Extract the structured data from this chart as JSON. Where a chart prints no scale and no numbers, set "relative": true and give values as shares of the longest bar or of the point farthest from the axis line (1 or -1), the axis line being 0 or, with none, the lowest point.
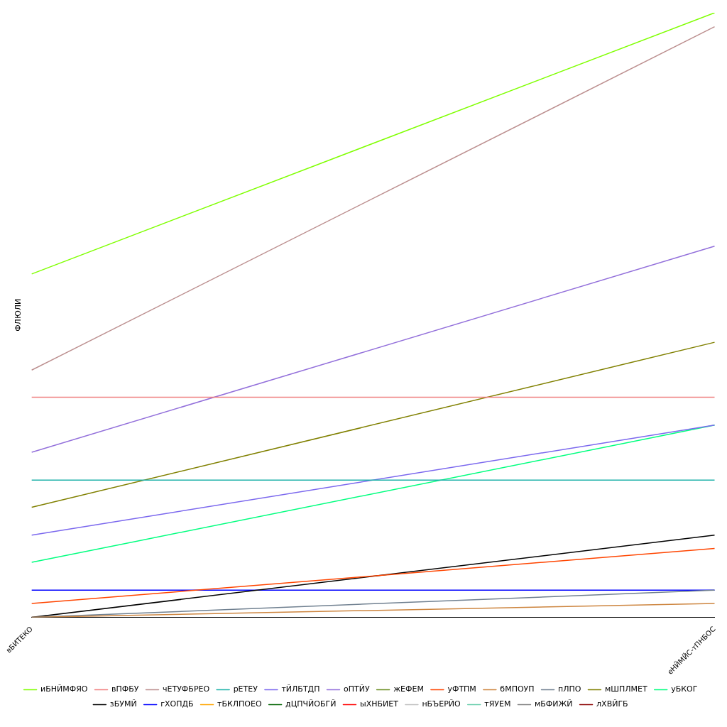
{
  "chart_data": {
    "type": "line",
    "ylabel": "ФЛЮЛИ",
    "categories": [
      "вБИТЕКО",
      "еНЙМЙС-тПНБОС"
    ],
    "relative": true,
    "legend": "bottom",
    "marker": "none",
    "line_style": "solid",
    "series": [
      {
        "name": "иБНЙМФЯО",
        "color": "#7fff00",
        "values": [
          0.568,
          1
        ]
      },
      {
        "name": "вПФБУ",
        "color": "#f08080",
        "values": [
          0.364,
          0.364
        ]
      },
      {
        "name": "чЕТУФБРЕО",
        "color": "#bc8f8f",
        "values": [
          0.409,
          0.977
        ]
      },
      {
        "name": "рЕТЕУ",
        "color": "#20b2aa",
        "values": [
          0.227,
          0.227
        ]
      },
      {
        "name": "тЙЛБТДП",
        "color": "#7b68ee",
        "values": [
          0.136,
          0.318
        ]
      },
      {
        "name": "оПТЙУ",
        "color": "#9370db",
        "values": [
          0.273,
          0.614
        ]
      },
      {
        "name": "жЕФЕМ",
        "color": "#6b8e23",
        "values": [
          null,
          null
        ]
      },
      {
        "name": "уФТПМ",
        "color": "#ff4500",
        "values": [
          0.023,
          0.114
        ]
      },
      {
        "name": "бМПОУП",
        "color": "#cd853f",
        "values": [
          0,
          0.023
        ]
      },
      {
        "name": "пЛПО",
        "color": "#708090",
        "values": [
          0,
          0.045
        ]
      },
      {
        "name": "мШПЛМЕТ",
        "color": "#808000",
        "values": [
          0.182,
          0.455
        ]
      },
      {
        "name": "уБКОГ",
        "color": "#00ff7f",
        "values": [
          0.091,
          0.318
        ]
      },
      {
        "name": "зБУМЙ",
        "color": "#000000",
        "values": [
          0,
          0.136
        ]
      },
      {
        "name": "гХОПДБ",
        "color": "#0000ff",
        "values": [
          0.045,
          0.045
        ]
      },
      {
        "name": "тБКЛПОЕО",
        "color": "#ffa500",
        "values": [
          null,
          null
        ]
      },
      {
        "name": "дЦПЧЙОБГЙ",
        "color": "#006400",
        "values": [
          null,
          null
        ]
      },
      {
        "name": "ыХНБИЕТ",
        "color": "#ff0000",
        "values": [
          null,
          null
        ]
      },
      {
        "name": "нБЪЕРЙО",
        "color": "#c0c0c0",
        "values": [
          null,
          null
        ]
      },
      {
        "name": "тЯУЕМ",
        "color": "#66cdaa",
        "values": [
          null,
          null
        ]
      },
      {
        "name": "мБФИЖЙ",
        "color": "#808080",
        "values": [
          null,
          null
        ]
      },
      {
        "name": "лХВЙГБ",
        "color": "#8b0000",
        "values": [
          null,
          null
        ]
      }
    ]
  }
}
